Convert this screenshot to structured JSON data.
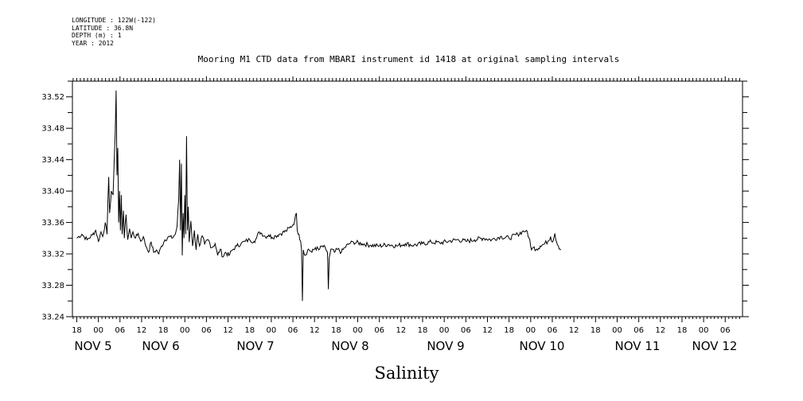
{
  "header": {
    "longitude": "LONGITUDE : 122W(-122)",
    "latitude": "LATITUDE : 36.8N",
    "depth": "DEPTH (m) : 1",
    "year": "YEAR : 2012",
    "title": "Mooring M1 CTD data from MBARI instrument id 1418 at original sampling intervals"
  },
  "chart_data": {
    "type": "line",
    "title": "Mooring M1 CTD data from MBARI instrument id 1418 at original sampling intervals",
    "xlabel": "Salinity",
    "ylabel": "",
    "ylim": [
      33.24,
      33.54
    ],
    "y_ticks": [
      "33.24",
      "33.28",
      "33.32",
      "33.36",
      "33.40",
      "33.44",
      "33.48",
      "33.52"
    ],
    "x_hour_ticks": [
      "18",
      "00",
      "06",
      "12",
      "18",
      "00",
      "06",
      "12",
      "18",
      "00",
      "06",
      "12",
      "18",
      "00",
      "06",
      "12",
      "18",
      "00",
      "06",
      "12",
      "18",
      "00",
      "06",
      "12",
      "18",
      "00",
      "06",
      "12",
      "18",
      "00",
      "06",
      "12"
    ],
    "x_date_labels": [
      "NOV  5",
      "NOV  6",
      "NOV  7",
      "NOV  8",
      "NOV  9",
      "NOV 10",
      "NOV 11",
      "NOV 12"
    ],
    "xlim_days": [
      4.45,
      12.2
    ],
    "grid": false,
    "series": [
      {
        "color": "#000000",
        "points": [
          [
            4.5,
            33.34
          ],
          [
            4.56,
            33.345
          ],
          [
            4.62,
            33.338
          ],
          [
            4.68,
            33.344
          ],
          [
            4.72,
            33.35
          ],
          [
            4.75,
            33.336
          ],
          [
            4.78,
            33.348
          ],
          [
            4.8,
            33.342
          ],
          [
            4.83,
            33.36
          ],
          [
            4.85,
            33.345
          ],
          [
            4.87,
            33.418
          ],
          [
            4.88,
            33.372
          ],
          [
            4.9,
            33.4
          ],
          [
            4.92,
            33.395
          ],
          [
            4.935,
            33.445
          ],
          [
            4.945,
            33.475
          ],
          [
            4.955,
            33.528
          ],
          [
            4.965,
            33.42
          ],
          [
            4.975,
            33.455
          ],
          [
            4.985,
            33.36
          ],
          [
            4.995,
            33.4
          ],
          [
            5.005,
            33.35
          ],
          [
            5.015,
            33.395
          ],
          [
            5.025,
            33.345
          ],
          [
            5.04,
            33.375
          ],
          [
            5.05,
            33.34
          ],
          [
            5.07,
            33.37
          ],
          [
            5.09,
            33.338
          ],
          [
            5.11,
            33.352
          ],
          [
            5.13,
            33.34
          ],
          [
            5.15,
            33.348
          ],
          [
            5.18,
            33.34
          ],
          [
            5.21,
            33.346
          ],
          [
            5.24,
            33.336
          ],
          [
            5.27,
            33.342
          ],
          [
            5.29,
            33.333
          ],
          [
            5.31,
            33.328
          ],
          [
            5.33,
            33.322
          ],
          [
            5.36,
            33.335
          ],
          [
            5.39,
            33.322
          ],
          [
            5.42,
            33.325
          ],
          [
            5.45,
            33.32
          ],
          [
            5.48,
            33.33
          ],
          [
            5.52,
            33.338
          ],
          [
            5.56,
            33.342
          ],
          [
            5.6,
            33.34
          ],
          [
            5.64,
            33.345
          ],
          [
            5.66,
            33.355
          ],
          [
            5.68,
            33.39
          ],
          [
            5.69,
            33.44
          ],
          [
            5.7,
            33.35
          ],
          [
            5.71,
            33.435
          ],
          [
            5.72,
            33.318
          ],
          [
            5.73,
            33.372
          ],
          [
            5.74,
            33.34
          ],
          [
            5.75,
            33.395
          ],
          [
            5.76,
            33.345
          ],
          [
            5.77,
            33.47
          ],
          [
            5.78,
            33.35
          ],
          [
            5.79,
            33.38
          ],
          [
            5.8,
            33.335
          ],
          [
            5.82,
            33.362
          ],
          [
            5.84,
            33.33
          ],
          [
            5.86,
            33.35
          ],
          [
            5.88,
            33.325
          ],
          [
            5.9,
            33.345
          ],
          [
            5.92,
            33.33
          ],
          [
            5.95,
            33.343
          ],
          [
            5.98,
            33.332
          ],
          [
            6.02,
            33.338
          ],
          [
            6.06,
            33.328
          ],
          [
            6.1,
            33.333
          ],
          [
            6.13,
            33.318
          ],
          [
            6.16,
            33.326
          ],
          [
            6.19,
            33.316
          ],
          [
            6.22,
            33.322
          ],
          [
            6.26,
            33.318
          ],
          [
            6.3,
            33.325
          ],
          [
            6.35,
            33.33
          ],
          [
            6.4,
            33.333
          ],
          [
            6.45,
            33.336
          ],
          [
            6.5,
            33.338
          ],
          [
            6.55,
            33.336
          ],
          [
            6.58,
            33.34
          ],
          [
            6.61,
            33.348
          ],
          [
            6.64,
            33.346
          ],
          [
            6.68,
            33.342
          ],
          [
            6.72,
            33.344
          ],
          [
            6.76,
            33.341
          ],
          [
            6.8,
            33.343
          ],
          [
            6.84,
            33.345
          ],
          [
            6.88,
            33.347
          ],
          [
            6.92,
            33.349
          ],
          [
            6.96,
            33.353
          ],
          [
            7.0,
            33.357
          ],
          [
            7.02,
            33.362
          ],
          [
            7.04,
            33.372
          ],
          [
            7.05,
            33.35
          ],
          [
            7.07,
            33.345
          ],
          [
            7.09,
            33.336
          ],
          [
            7.1,
            33.325
          ],
          [
            7.11,
            33.26
          ],
          [
            7.12,
            33.325
          ],
          [
            7.14,
            33.318
          ],
          [
            7.18,
            33.326
          ],
          [
            7.22,
            33.322
          ],
          [
            7.26,
            33.328
          ],
          [
            7.3,
            33.325
          ],
          [
            7.34,
            33.33
          ],
          [
            7.38,
            33.326
          ],
          [
            7.4,
            33.322
          ],
          [
            7.41,
            33.275
          ],
          [
            7.42,
            33.315
          ],
          [
            7.44,
            33.326
          ],
          [
            7.48,
            33.322
          ],
          [
            7.52,
            33.326
          ],
          [
            7.56,
            33.322
          ],
          [
            7.6,
            33.328
          ],
          [
            7.65,
            33.333
          ],
          [
            7.7,
            33.335
          ],
          [
            7.8,
            33.333
          ],
          [
            7.9,
            33.331
          ],
          [
            8.0,
            33.33
          ],
          [
            8.1,
            33.332
          ],
          [
            8.2,
            33.33
          ],
          [
            8.3,
            33.333
          ],
          [
            8.4,
            33.331
          ],
          [
            8.5,
            33.333
          ],
          [
            8.6,
            33.335
          ],
          [
            8.7,
            33.334
          ],
          [
            8.8,
            33.336
          ],
          [
            8.9,
            33.338
          ],
          [
            9.0,
            33.336
          ],
          [
            9.1,
            33.338
          ],
          [
            9.2,
            33.34
          ],
          [
            9.3,
            33.338
          ],
          [
            9.4,
            33.342
          ],
          [
            9.5,
            33.34
          ],
          [
            9.6,
            33.345
          ],
          [
            9.65,
            33.348
          ],
          [
            9.7,
            33.35
          ],
          [
            9.72,
            33.342
          ],
          [
            9.74,
            33.338
          ],
          [
            9.76,
            33.325
          ],
          [
            9.78,
            33.328
          ],
          [
            9.82,
            33.326
          ],
          [
            9.86,
            33.33
          ],
          [
            9.9,
            33.332
          ],
          [
            9.95,
            33.336
          ],
          [
            9.98,
            33.342
          ],
          [
            10.0,
            33.335
          ],
          [
            10.03,
            33.346
          ],
          [
            10.05,
            33.335
          ],
          [
            10.07,
            33.33
          ],
          [
            10.1,
            33.325
          ]
        ]
      }
    ]
  }
}
